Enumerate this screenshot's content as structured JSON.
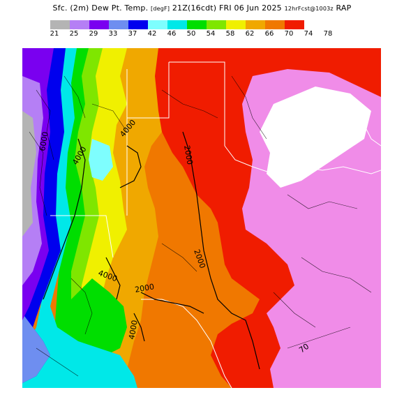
{
  "title": {
    "main": "Sfc. (2m) Dew Pt. Temp.",
    "units": "[degF]",
    "valid": "21Z(16cdt) FRI 06 Jun 2025",
    "forecast": "12hrFcst@1003z",
    "model": "RAP"
  },
  "legend": {
    "ticks": [
      "21",
      "25",
      "29",
      "33",
      "37",
      "42",
      "46",
      "50",
      "54",
      "58",
      "62",
      "66",
      "70",
      "74",
      "78"
    ],
    "colors": [
      "#b4b4b4",
      "#b57ff5",
      "#7a00f0",
      "#6e8ef0",
      "#0000ee",
      "#7efefe",
      "#00e8e8",
      "#00de00",
      "#7fe600",
      "#f0f000",
      "#f0a800",
      "#f07800",
      "#f01c00",
      "#f08ce8",
      "#f0c8f0"
    ]
  },
  "map": {
    "contour_labels": [
      "6000",
      "4000",
      "4000",
      "2000",
      "2000",
      "4000",
      "2000",
      "4000",
      "70"
    ],
    "colors": {
      "fill_gray": "#b4b4b4",
      "fill_lavender": "#b57ff5",
      "fill_purple": "#7a00f0",
      "fill_blue": "#0000ee",
      "fill_steel": "#6e8ef0",
      "fill_cyan": "#00e8e8",
      "fill_lightcyan": "#7efefe",
      "fill_green": "#00de00",
      "fill_lime": "#7fe600",
      "fill_yellow": "#f0f000",
      "fill_orange": "#f07800",
      "fill_lightorange": "#f0a800",
      "fill_red": "#f01c00",
      "fill_pink": "#f08ce8",
      "fill_white": "#ffffff"
    }
  }
}
